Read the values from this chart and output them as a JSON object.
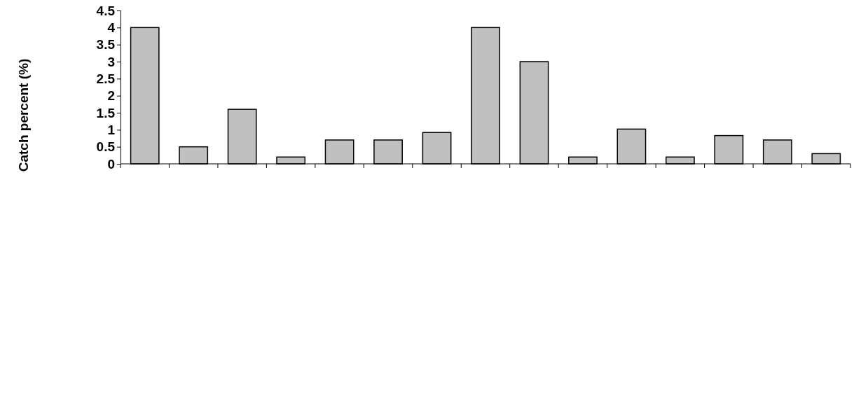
{
  "chart_data": {
    "type": "bar",
    "ylabel": "Catch percent (%)",
    "categories": [
      null,
      null,
      null,
      null,
      null,
      null,
      null,
      null,
      null,
      null,
      null,
      null,
      null,
      null,
      null
    ],
    "values": [
      4,
      0.5,
      1.6,
      0.2,
      0.7,
      0.7,
      0.92,
      4,
      3,
      0.2,
      1.02,
      0.2,
      0.83,
      0.7,
      0.3
    ],
    "color": "#c0c0c0",
    "ylim": [
      0,
      4.5
    ],
    "yticks": [
      0,
      0.5,
      1,
      1.5,
      2,
      2.5,
      3,
      3.5,
      4,
      4.5
    ],
    "grid": false
  }
}
